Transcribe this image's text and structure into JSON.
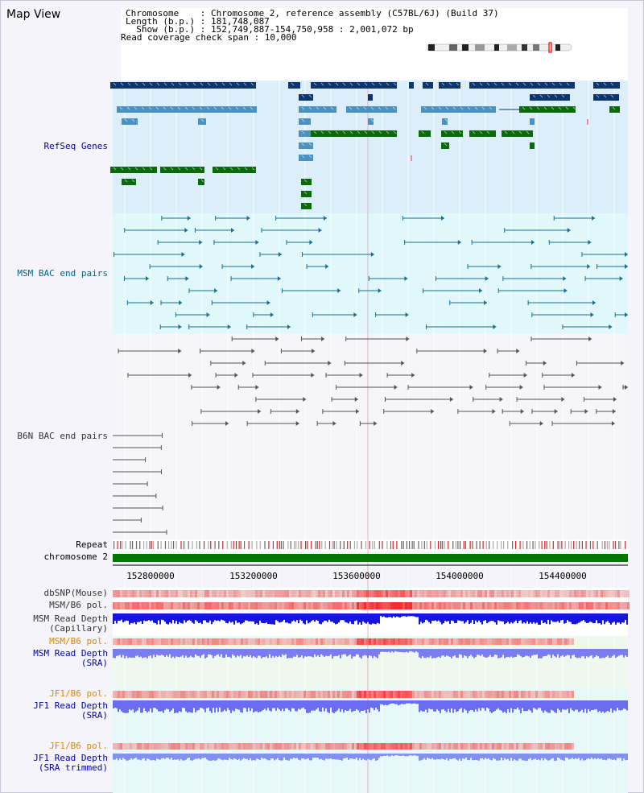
{
  "app": {
    "title": "Map View"
  },
  "info": {
    "chromosome": "Chromosome    : Chromosome 2, reference assembly (C57BL/6J) (Build 37)",
    "length": "Length (b.p.) : 181,748,087",
    "show": "  Show (b.p.) : 152,749,887-154,750,958 : 2,001,072 bp",
    "span": "Read coverage check span : 10,000"
  },
  "tracks": {
    "refseq": "RefSeq Genes",
    "msm_bac": "MSM BAC end pairs",
    "b6n_bac": "B6N BAC end pairs",
    "repeat": "Repeat",
    "chromosome": "chromosome 2",
    "dbsnp": "dbSNP(Mouse)",
    "msm_b6_pol": "MSM/B6 pol.",
    "msm_depth_cap_1": "MSM Read Depth",
    "msm_depth_cap_2": "(Capillary)",
    "msm_b6_pol_sra": "MSM/B6 pol.",
    "msm_depth_sra_1": "MSM Read Depth",
    "msm_depth_sra_2": "(SRA)",
    "jf1_b6_pol": "JF1/B6 pol.",
    "jf1_depth_1": "JF1 Read Depth",
    "jf1_depth_2": "(SRA)",
    "jf1_b6_pol_t": "JF1/B6 pol.",
    "jf1_depth_t_1": "JF1 Read Depth",
    "jf1_depth_t_2": "(SRA trimmed)"
  },
  "axis": {
    "ticks": [
      "152800000",
      "153200000",
      "153600000",
      "154000000",
      "154400000"
    ]
  },
  "colors": {
    "label_blue": "#0000aa",
    "label_teal": "#006688",
    "label_gray": "#333333",
    "label_orange": "#dd8800",
    "gene_dark": "#0d3670",
    "gene_mid": "#4a92c0",
    "gene_green": "#0a6a0a",
    "chrom_green": "#007700"
  }
}
